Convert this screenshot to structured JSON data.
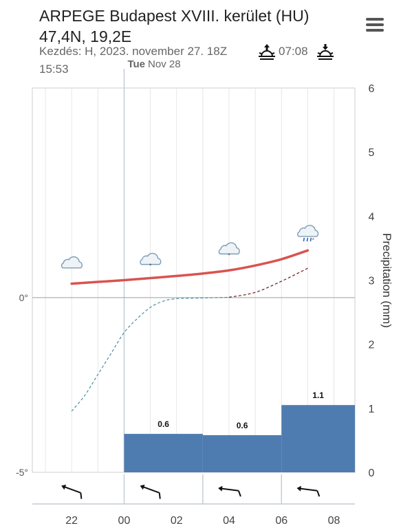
{
  "header": {
    "title_line1": "ARPEGE Budapest XVIII. kerület (HU)",
    "title_line2": "47,4N, 19,2E",
    "start_text": "Kezdés: H, 2023. november 27. 18Z",
    "sunrise_time": "07:08",
    "sunset_time": "15:53",
    "sunrise_icon": "sunrise-icon",
    "sunset_icon": "sunset-icon",
    "menu_icon": "hamburger-menu-icon"
  },
  "chart_data": {
    "type": "line+bar",
    "day_label_bold": "Tue",
    "day_label_rest": "Nov 28",
    "x_tick_labels": [
      "22",
      "00",
      "02",
      "04",
      "06",
      "08"
    ],
    "x_tick_hours": [
      22,
      24,
      26,
      28,
      30,
      32
    ],
    "x_range_hours": [
      20.5,
      32.8
    ],
    "left_axis": {
      "ylim": [
        -5,
        6
      ],
      "tick_labels": [
        "0°",
        "-5°"
      ],
      "tick_values": [
        0,
        -5
      ]
    },
    "right_axis": {
      "label": "Precipitation (mm)",
      "ylim": [
        0,
        6
      ],
      "tick_values": [
        0,
        1,
        2,
        3,
        4,
        5,
        6
      ]
    },
    "temperature": {
      "color": "#d9534f",
      "x": [
        22,
        23,
        24,
        25,
        26,
        27,
        28,
        29,
        30,
        31
      ],
      "y": [
        0.4,
        0.45,
        0.5,
        0.56,
        0.62,
        0.69,
        0.78,
        0.92,
        1.1,
        1.35
      ]
    },
    "dewpoint": {
      "color_below_zero": "#4a8fa0",
      "color_above_zero": "#6b1a1a",
      "x": [
        22,
        22.5,
        23,
        23.5,
        24,
        24.5,
        25,
        25.5,
        26,
        27,
        28,
        29,
        30,
        31
      ],
      "y": [
        -3.25,
        -2.8,
        -2.2,
        -1.6,
        -1.0,
        -0.6,
        -0.28,
        -0.1,
        -0.03,
        -0.01,
        0.01,
        0.15,
        0.47,
        0.84
      ]
    },
    "precipitation_bars": [
      {
        "x_start": 21,
        "x_end": 24,
        "value": 0,
        "label": ""
      },
      {
        "x_start": 24,
        "x_end": 27,
        "value": 0.6,
        "label": "0.6"
      },
      {
        "x_start": 27,
        "x_end": 30,
        "value": 0.58,
        "label": "0.6"
      },
      {
        "x_start": 30,
        "x_end": 33,
        "value": 1.05,
        "label": "1.1"
      }
    ],
    "bar_color": "#4f7cb0",
    "weather_icons": [
      {
        "x": 22,
        "y": 0.85,
        "icon": "cloud-icon"
      },
      {
        "x": 25,
        "y": 0.95,
        "icon": "cloud-light-snow-icon"
      },
      {
        "x": 28,
        "y": 1.25,
        "icon": "cloud-light-snow-icon"
      },
      {
        "x": 31,
        "y": 1.75,
        "icon": "cloud-rain-snow-icon"
      }
    ],
    "wind": [
      {
        "x": 22,
        "direction": "west-northwest",
        "barbs": 1
      },
      {
        "x": 25,
        "direction": "west-northwest",
        "barbs": 1
      },
      {
        "x": 28,
        "direction": "west",
        "barbs": 1
      },
      {
        "x": 31,
        "direction": "west",
        "barbs": 1
      }
    ]
  }
}
